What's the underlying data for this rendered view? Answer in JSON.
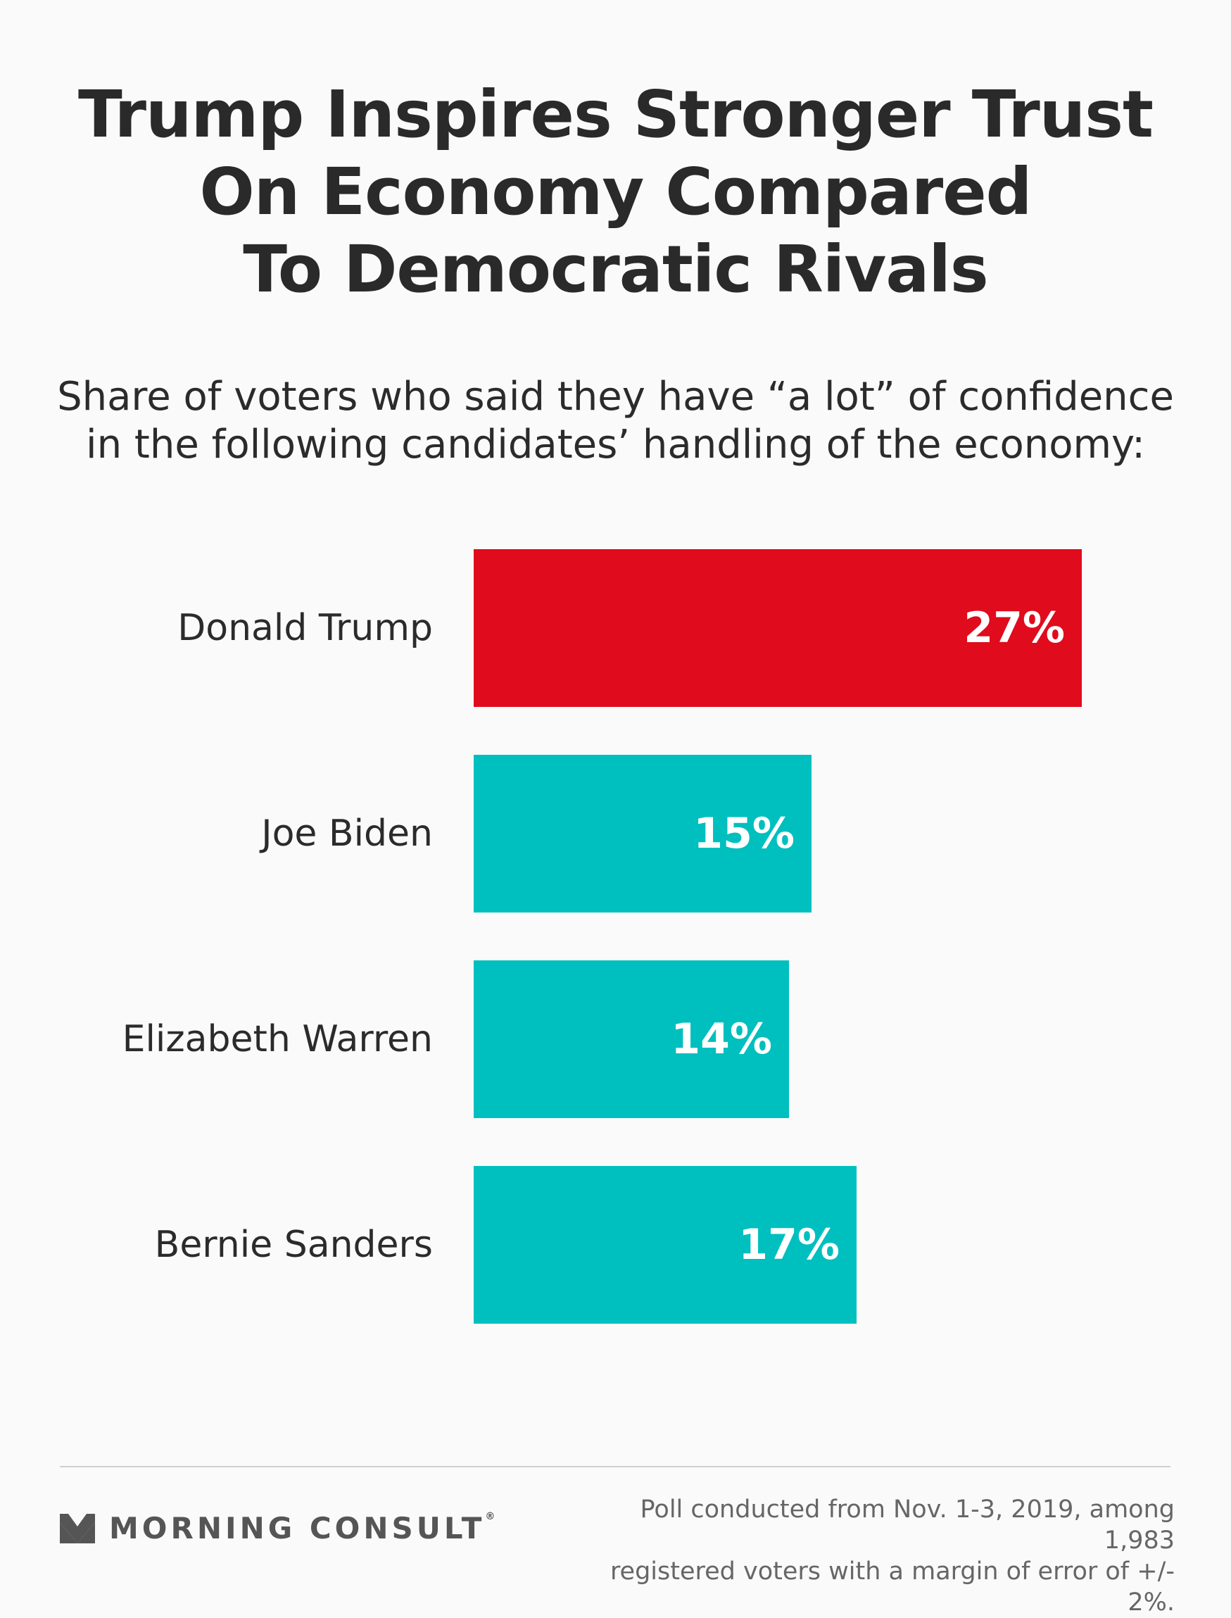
{
  "header": {
    "title_lines": [
      "Trump Inspires Stronger Trust",
      "On Economy Compared",
      "To Democratic Rivals"
    ],
    "subtitle_lines": [
      "Share of voters who said they have “a lot” of confidence",
      "in the following candidates’ handling of the economy:"
    ]
  },
  "chart_data": {
    "type": "bar",
    "orientation": "horizontal",
    "categories": [
      "Donald Trump",
      "Joe Biden",
      "Elizabeth Warren",
      "Bernie Sanders"
    ],
    "values": [
      27,
      15,
      14,
      17
    ],
    "value_labels": [
      "27%",
      "15%",
      "14%",
      "17%"
    ],
    "colors": [
      "#e00b1c",
      "#00bfbf",
      "#00bfbf",
      "#00bfbf"
    ],
    "title": "Trump Inspires Stronger Trust On Economy Compared To Democratic Rivals",
    "subtitle": "Share of voters who said they have “a lot” of confidence in the following candidates’ handling of the economy:",
    "xlabel": "",
    "ylabel": "",
    "grid": false,
    "legend": "none"
  },
  "footer": {
    "brand": "MORNING CONSULT",
    "brand_mark": "®",
    "source_lines": [
      "Poll conducted from Nov. 1-3, 2019, among 1,983",
      "registered voters with a margin of error of +/- 2%."
    ]
  }
}
